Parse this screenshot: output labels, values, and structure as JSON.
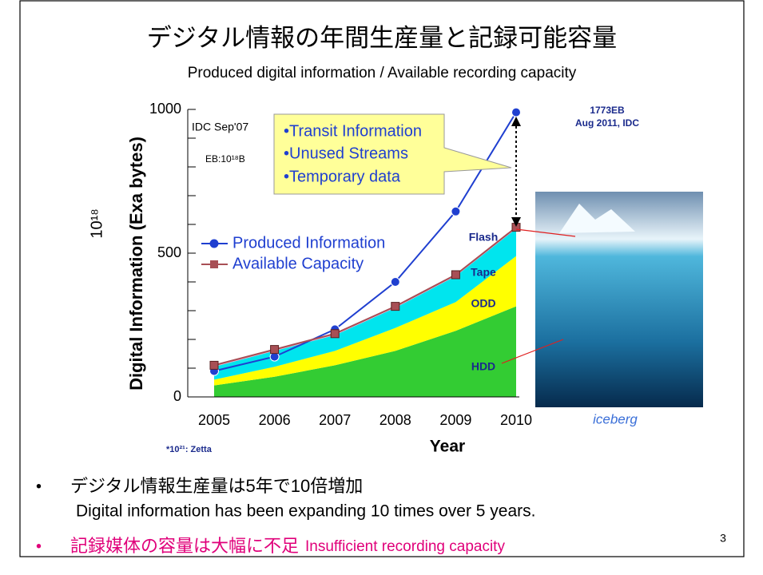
{
  "chart_data": {
    "type": "line",
    "title": "デジタル情報の年間生産量と記録可能容量",
    "subtitle": "Produced digital information / Available recording capacity",
    "y_label": "Digital Information (Exa bytes)",
    "y_unit": "10¹⁸",
    "x_label": "Year",
    "categories": [
      "2005",
      "2006",
      "2007",
      "2008",
      "2009",
      "2010"
    ],
    "ylim": [
      0,
      1000
    ],
    "yticks": [
      0,
      500,
      1000
    ],
    "yminorticks": [
      100,
      200,
      300,
      400,
      600,
      700,
      800,
      900
    ],
    "series": [
      {
        "name": "Produced Information",
        "color": "#1f3fd0",
        "marker": "circle",
        "values": [
          90,
          140,
          235,
          400,
          645,
          990
        ]
      },
      {
        "name": "Available Capacity",
        "color": "#a84f55",
        "marker": "square",
        "values": [
          110,
          165,
          220,
          315,
          425,
          590
        ]
      }
    ],
    "stack_series": [
      {
        "name": "HDD",
        "color": "#33cc33",
        "values": [
          40,
          70,
          110,
          160,
          230,
          315
        ]
      },
      {
        "name": "ODD",
        "color": "#ffff00",
        "values": [
          20,
          35,
          50,
          80,
          100,
          175
        ]
      },
      {
        "name": "Tape",
        "color": "#00e5ee",
        "values": [
          45,
          55,
          55,
          70,
          90,
          95
        ]
      },
      {
        "name": "Flash",
        "color": "#f4a6c8",
        "values": [
          5,
          5,
          5,
          5,
          5,
          5
        ]
      }
    ],
    "annotations": {
      "source": "IDC Sep'07",
      "unit_note": "EB:10¹⁸B",
      "callout": [
        "•Transit Information",
        "•Unused Streams",
        "•Temporary data"
      ],
      "latest_value": "1773EB",
      "latest_source": "Aug 2011, IDC",
      "zetta_note": "*10²¹: Zetta",
      "image_caption": "iceberg"
    },
    "bullets": [
      {
        "text": "デジタル情報生産量は5年で10倍増加",
        "translation": "Digital information has been expanding 10 times over 5 years."
      },
      {
        "text": "記録媒体の容量は大幅に不足",
        "translation": "Insufficient recording capacity"
      }
    ],
    "page_number": "3"
  }
}
